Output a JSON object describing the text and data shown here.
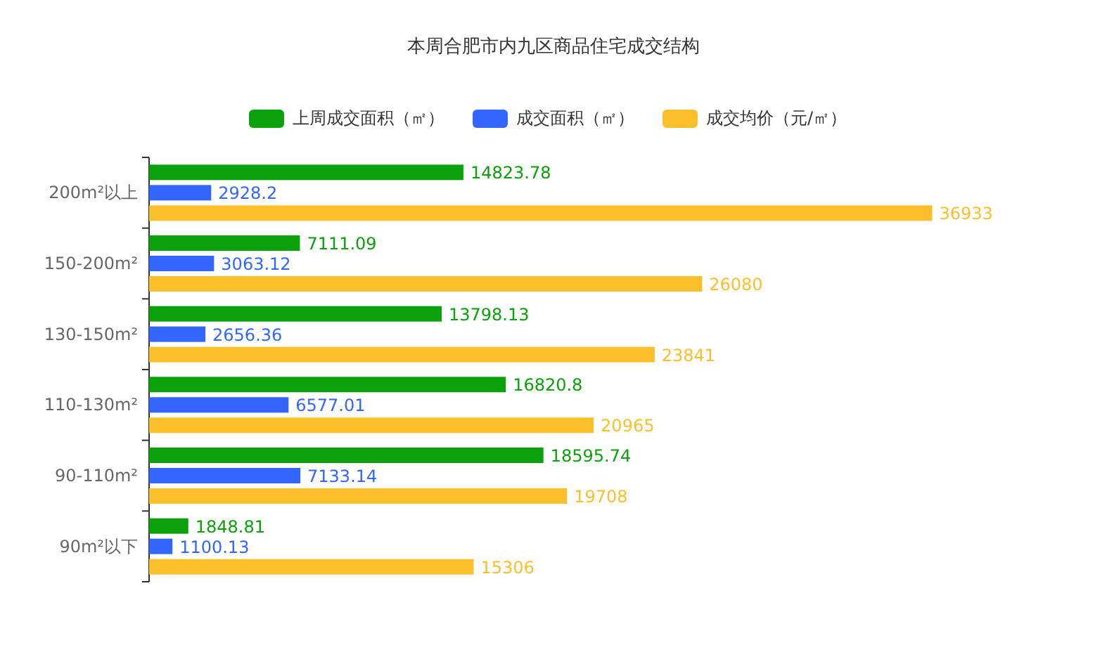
{
  "chart_data": {
    "type": "bar",
    "orientation": "horizontal",
    "title": "本周合肥市内九区商品住宅成交结构",
    "categories": [
      "200m²以上",
      "150-200m²",
      "130-150m²",
      "110-130m²",
      "90-110m²",
      "90m²以下"
    ],
    "series": [
      {
        "name": "上周成交面积（㎡）",
        "color": "#0aa10a",
        "values": [
          14823.78,
          7111.09,
          13798.13,
          16820.8,
          18595.74,
          1848.81
        ]
      },
      {
        "name": "成交面积（㎡）",
        "color": "#3366ff",
        "values": [
          2928.2,
          3063.12,
          2656.36,
          6577.01,
          7133.14,
          1100.13
        ]
      },
      {
        "name": "成交均价（元/㎡）",
        "color": "#fbbf2c",
        "values": [
          36933,
          26080,
          23841,
          20965,
          19708,
          15306
        ]
      }
    ],
    "data_labels": true,
    "legend": "top"
  }
}
